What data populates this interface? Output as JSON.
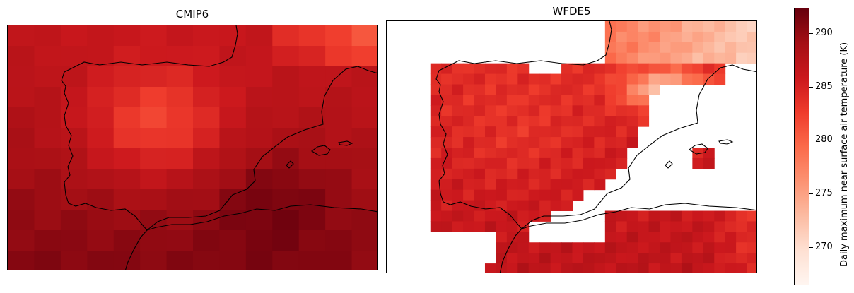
{
  "panels": [
    {
      "title": "CMIP6",
      "dataset": "CMIP6"
    },
    {
      "title": "WFDE5",
      "dataset": "WFDE5"
    }
  ],
  "colorbar": {
    "label": "Daily maximum near surface air temperature (K)",
    "colormap": "Reds",
    "range": [
      266.5,
      292.3
    ],
    "ticks": [
      "270",
      "275",
      "280",
      "285",
      "290"
    ]
  },
  "colors": {
    "low": "#fff5f0",
    "high": "#67000d",
    "coastline": "#000000"
  }
}
